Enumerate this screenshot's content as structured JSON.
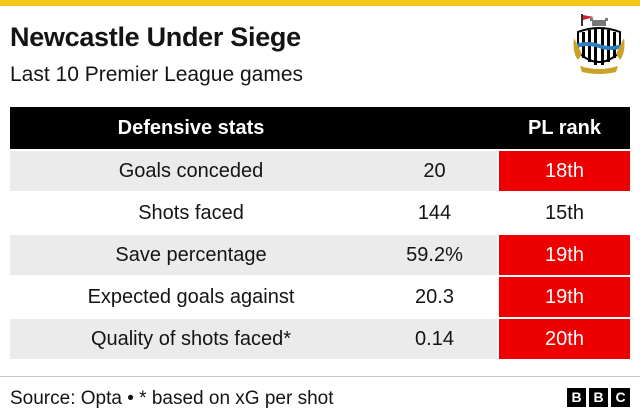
{
  "header": {
    "title": "Newcastle Under Siege",
    "subtitle": "Last 10 Premier League games",
    "crest_icon": "newcastle-crest-icon"
  },
  "table": {
    "col_stat": "Defensive stats",
    "col_rank": "PL rank",
    "rows": [
      {
        "stat": "Goals conceded",
        "value": "20",
        "rank": "18th",
        "highlight": true
      },
      {
        "stat": "Shots faced",
        "value": "144",
        "rank": "15th",
        "highlight": false
      },
      {
        "stat": "Save percentage",
        "value": "59.2%",
        "rank": "19th",
        "highlight": true
      },
      {
        "stat": "Expected goals against",
        "value": "20.3",
        "rank": "19th",
        "highlight": true
      },
      {
        "stat": "Quality of shots faced*",
        "value": "0.14",
        "rank": "20th",
        "highlight": true
      }
    ]
  },
  "footer": {
    "source": "Source: Opta • * based on xG per shot",
    "logo": [
      "B",
      "B",
      "C"
    ]
  },
  "colors": {
    "accent_bar": "#f5c518",
    "header_bg": "#000000",
    "highlight": "#ee0000",
    "row_shade": "#ebebeb"
  }
}
